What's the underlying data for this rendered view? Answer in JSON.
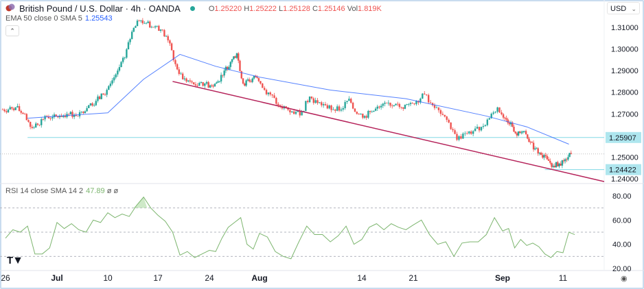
{
  "header": {
    "symbol_title": "British Pound / U.S. Dollar · 4h · OANDA",
    "market_status_color": "#26a69a",
    "ohlc": {
      "o_label": "O",
      "o": "1.25220",
      "h_label": "H",
      "h": "1.25222",
      "l_label": "L",
      "l": "1.25128",
      "c_label": "C",
      "c": "1.25146",
      "vol_label": "Vol",
      "vol": "1.819K"
    },
    "indicator_label": "EMA 50 close 0 SMA 5",
    "indicator_value": "1.25543",
    "collapse_icon": "chevron-up-icon"
  },
  "currency_button": "USD",
  "rsi": {
    "label": "RSI 14 close SMA 14 2",
    "value": "47.89",
    "extra1": "ø",
    "extra2": "ø"
  },
  "colors": {
    "up": "#26a69a",
    "down": "#ef5350",
    "ema": "#2962ff",
    "trendline": "#b5235a",
    "hline": "#80d8e6",
    "rsi": "#7cb56e",
    "badge": "#aee6ee"
  },
  "logo": "TV",
  "settings_icon": "settings-icon",
  "chart_data": [
    {
      "type": "candlestick",
      "title": "British Pound / U.S. Dollar · 4h · OANDA",
      "ylim": [
        1.236,
        1.3165
      ],
      "y_ticks": [
        "1.31000",
        "1.30000",
        "1.29000",
        "1.28000",
        "1.27000",
        "1.25000",
        "1.24000"
      ],
      "x_ticks": [
        "26",
        "Jul",
        "10",
        "17",
        "24",
        "Aug",
        "14",
        "21",
        "Sep",
        "11"
      ],
      "closes": [
        [
          "Jun 26",
          1.272
        ],
        [
          "Jun 27",
          1.273
        ],
        [
          "Jun 28",
          1.27
        ],
        [
          "Jun 29",
          1.264
        ],
        [
          "Jun 30",
          1.265
        ],
        [
          "Jul 1",
          1.269
        ],
        [
          "Jul 2",
          1.2685
        ],
        [
          "Jul 3",
          1.269
        ],
        [
          "Jul 4",
          1.27
        ],
        [
          "Jul 5",
          1.2695
        ],
        [
          "Jul 6",
          1.271
        ],
        [
          "Jul 7",
          1.274
        ],
        [
          "Jul 8",
          1.276
        ],
        [
          "Jul 9",
          1.279
        ],
        [
          "Jul 10",
          1.284
        ],
        [
          "Jul 11",
          1.29
        ],
        [
          "Jul 12",
          1.296
        ],
        [
          "Jul 13",
          1.308
        ],
        [
          "Jul 14",
          1.313
        ],
        [
          "Jul 15",
          1.312
        ],
        [
          "Jul 16",
          1.31
        ],
        [
          "Jul 17",
          1.309
        ],
        [
          "Jul 18",
          1.304
        ],
        [
          "Jul 19",
          1.293
        ],
        [
          "Jul 20",
          1.286
        ],
        [
          "Jul 21",
          1.285
        ],
        [
          "Jul 22",
          1.283
        ],
        [
          "Jul 23",
          1.284
        ],
        [
          "Jul 24",
          1.283
        ],
        [
          "Jul 25",
          1.285
        ],
        [
          "Jul 26",
          1.29
        ],
        [
          "Jul 27",
          1.294
        ],
        [
          "Jul 28",
          1.298
        ],
        [
          "Jul 29",
          1.284
        ],
        [
          "Jul 30",
          1.285
        ],
        [
          "Jul 31",
          1.287
        ],
        [
          "Aug 1",
          1.282
        ],
        [
          "Aug 2",
          1.279
        ],
        [
          "Aug 3",
          1.274
        ],
        [
          "Aug 4",
          1.273
        ],
        [
          "Aug 5",
          1.27
        ],
        [
          "Aug 6",
          1.271
        ],
        [
          "Aug 7",
          1.278
        ],
        [
          "Aug 8",
          1.275
        ],
        [
          "Aug 9",
          1.274
        ],
        [
          "Aug 10",
          1.272
        ],
        [
          "Aug 11",
          1.272
        ],
        [
          "Aug 12",
          1.277
        ],
        [
          "Aug 13",
          1.27
        ],
        [
          "Aug 14",
          1.269
        ],
        [
          "Aug 15",
          1.271
        ],
        [
          "Aug 16",
          1.273
        ],
        [
          "Aug 17",
          1.275
        ],
        [
          "Aug 18",
          1.274
        ],
        [
          "Aug 19",
          1.273
        ],
        [
          "Aug 20",
          1.2745
        ],
        [
          "Aug 21",
          1.276
        ],
        [
          "Aug 22",
          1.279
        ],
        [
          "Aug 23",
          1.274
        ],
        [
          "Aug 24",
          1.27
        ],
        [
          "Aug 25",
          1.266
        ],
        [
          "Aug 26",
          1.258
        ],
        [
          "Aug 27",
          1.261
        ],
        [
          "Aug 28",
          1.262
        ],
        [
          "Aug 29",
          1.264
        ],
        [
          "Aug 30",
          1.268
        ],
        [
          "Aug 31",
          1.273
        ],
        [
          "Sep 1",
          1.268
        ],
        [
          "Sep 2",
          1.266
        ],
        [
          "Sep 3",
          1.26
        ],
        [
          "Sep 4",
          1.262
        ],
        [
          "Sep 5",
          1.257
        ],
        [
          "Sep 6",
          1.254
        ],
        [
          "Sep 7",
          1.251
        ],
        [
          "Sep 8",
          1.249
        ],
        [
          "Sep 9",
          1.246
        ],
        [
          "Sep 10",
          1.247
        ],
        [
          "Sep 11",
          1.249
        ],
        [
          "Sep 12",
          1.2515
        ]
      ],
      "ema50": [
        [
          "Jun 29",
          1.268
        ],
        [
          "Jul 10",
          1.2705
        ],
        [
          "Jul 15",
          1.286
        ],
        [
          "Jul 20",
          1.2975
        ],
        [
          "Jul 25",
          1.292
        ],
        [
          "Aug 1",
          1.287
        ],
        [
          "Aug 10",
          1.281
        ],
        [
          "Aug 20",
          1.277
        ],
        [
          "Aug 30",
          1.269
        ],
        [
          "Sep 5",
          1.264
        ],
        [
          "Sep 12",
          1.256
        ]
      ],
      "trendline": [
        [
          "Jul 19",
          1.285
        ],
        [
          "Sep 18",
          1.2387
        ]
      ],
      "horizontal_levels": [
        {
          "value": 1.25907,
          "label": "1.25907",
          "from": "Jun 29"
        },
        {
          "value": 1.24422,
          "label": "1.24422",
          "from": "Sep 8"
        }
      ],
      "last_price": 1.25146
    },
    {
      "type": "line",
      "title": "RSI 14 close SMA 14 2",
      "ylim": [
        18,
        86
      ],
      "y_ticks": [
        "80.00",
        "60.00",
        "40.00",
        "20.00"
      ],
      "levels": [
        70,
        50,
        30
      ],
      "values": [
        [
          "Jun 26",
          45
        ],
        [
          "Jun 27",
          52
        ],
        [
          "Jun 28",
          50
        ],
        [
          "Jun 29",
          55
        ],
        [
          "Jun 30",
          32
        ],
        [
          "Jul 1",
          32
        ],
        [
          "Jul 2",
          37
        ],
        [
          "Jul 3",
          58
        ],
        [
          "Jul 4",
          53
        ],
        [
          "Jul 5",
          57
        ],
        [
          "Jul 6",
          52
        ],
        [
          "Jul 7",
          50
        ],
        [
          "Jul 8",
          60
        ],
        [
          "Jul 9",
          58
        ],
        [
          "Jul 10",
          66
        ],
        [
          "Jul 11",
          62
        ],
        [
          "Jul 12",
          65
        ],
        [
          "Jul 13",
          63
        ],
        [
          "Jul 14",
          72
        ],
        [
          "Jul 15",
          79
        ],
        [
          "Jul 16",
          70
        ],
        [
          "Jul 17",
          64
        ],
        [
          "Jul 18",
          59
        ],
        [
          "Jul 19",
          50
        ],
        [
          "Jul 20",
          31
        ],
        [
          "Jul 21",
          34
        ],
        [
          "Jul 22",
          29
        ],
        [
          "Jul 23",
          32
        ],
        [
          "Jul 24",
          35
        ],
        [
          "Jul 25",
          34
        ],
        [
          "Jul 26",
          45
        ],
        [
          "Jul 27",
          54
        ],
        [
          "Jul 28",
          58
        ],
        [
          "Jul 29",
          62
        ],
        [
          "Jul 30",
          40
        ],
        [
          "Jul 31",
          36
        ],
        [
          "Aug 1",
          49
        ],
        [
          "Aug 2",
          46
        ],
        [
          "Aug 3",
          34
        ],
        [
          "Aug 4",
          30
        ],
        [
          "Aug 5",
          28
        ],
        [
          "Aug 6",
          42
        ],
        [
          "Aug 7",
          55
        ],
        [
          "Aug 8",
          48
        ],
        [
          "Aug 9",
          48
        ],
        [
          "Aug 10",
          42
        ],
        [
          "Aug 11",
          47
        ],
        [
          "Aug 12",
          55
        ],
        [
          "Aug 13",
          40
        ],
        [
          "Aug 14",
          44
        ],
        [
          "Aug 15",
          54
        ],
        [
          "Aug 16",
          57
        ],
        [
          "Aug 17",
          52
        ],
        [
          "Aug 18",
          57
        ],
        [
          "Aug 19",
          54
        ],
        [
          "Aug 20",
          52
        ],
        [
          "Aug 21",
          56
        ],
        [
          "Aug 22",
          60
        ],
        [
          "Aug 23",
          48
        ],
        [
          "Aug 24",
          40
        ],
        [
          "Aug 25",
          42
        ],
        [
          "Aug 26",
          30
        ],
        [
          "Aug 27",
          41
        ],
        [
          "Aug 28",
          42
        ],
        [
          "Aug 29",
          42
        ],
        [
          "Aug 30",
          48
        ],
        [
          "Aug 31",
          62
        ],
        [
          "Sep 1",
          51
        ],
        [
          "Sep 2",
          53
        ],
        [
          "Sep 3",
          37
        ],
        [
          "Sep 4",
          44
        ],
        [
          "Sep 5",
          39
        ],
        [
          "Sep 6",
          41
        ],
        [
          "Sep 7",
          38
        ],
        [
          "Sep 8",
          32
        ],
        [
          "Sep 9",
          29
        ],
        [
          "Sep 10",
          34
        ],
        [
          "Sep 11",
          33
        ],
        [
          "Sep 12",
          50
        ],
        [
          "Sep 13",
          48
        ]
      ]
    }
  ]
}
